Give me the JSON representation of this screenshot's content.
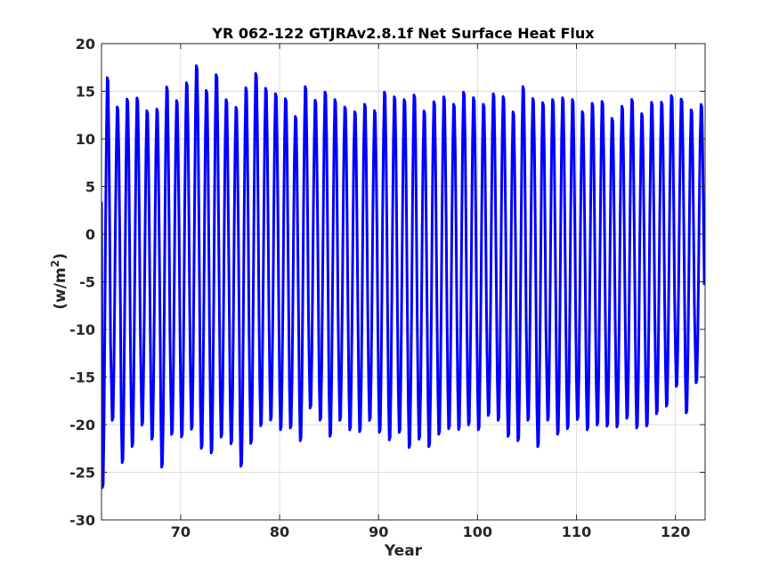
{
  "chart_data": {
    "type": "line",
    "title": "YR 062-122 GTJRAv2.8.1f Net Surface Heat Flux",
    "xlabel": "Year",
    "ylabel": "(w/m",
    "ylabel_sup": "2",
    "ylabel_close": ")",
    "xlim": [
      62,
      123
    ],
    "ylim": [
      -30,
      20
    ],
    "xticks": [
      70,
      80,
      90,
      100,
      110,
      120
    ],
    "yticks": [
      -30,
      -25,
      -20,
      -15,
      -10,
      -5,
      0,
      5,
      10,
      15,
      20
    ],
    "grid": true,
    "legend": "none",
    "series": [
      {
        "color": "#0000ff",
        "samples_per_year": 12,
        "x_start": 62.0,
        "annual_max": [
          17.0,
          13.8,
          14.7,
          14.8,
          13.4,
          13.6,
          16.0,
          14.5,
          16.4,
          18.2,
          15.6,
          17.3,
          14.6,
          13.8,
          15.9,
          17.4,
          15.8,
          15.2,
          14.7,
          12.8,
          16.0,
          14.5,
          15.4,
          14.6,
          13.8,
          13.3,
          14.1,
          13.4,
          15.4,
          14.9,
          14.6,
          15.1,
          13.4,
          14.4,
          14.9,
          14.1,
          15.4,
          14.8,
          14.1,
          15.2,
          14.9,
          13.3,
          16.0,
          14.7,
          14.3,
          14.6,
          14.8,
          14.6,
          13.3,
          14.2,
          14.4,
          12.6,
          13.9,
          14.6,
          13.1,
          14.3,
          14.3,
          15.0,
          14.6,
          13.5,
          14.0
        ],
        "annual_min": [
          -27.2,
          -20.0,
          -24.5,
          -22.8,
          -20.5,
          -22.0,
          -25.0,
          -21.5,
          -21.8,
          -21.0,
          -23.0,
          -23.5,
          -21.8,
          -22.5,
          -24.9,
          -22.5,
          -20.6,
          -20.0,
          -21.0,
          -20.8,
          -22.2,
          -18.7,
          -20.0,
          -21.7,
          -20.0,
          -21.0,
          -21.2,
          -20.0,
          -21.3,
          -22.1,
          -21.3,
          -22.9,
          -22.0,
          -22.8,
          -21.5,
          -20.9,
          -21.0,
          -20.5,
          -21.0,
          -19.5,
          -20.0,
          -21.7,
          -22.2,
          -20.0,
          -22.8,
          -20.0,
          -21.5,
          -20.9,
          -19.9,
          -21.0,
          -20.5,
          -20.6,
          -20.7,
          -19.8,
          -20.8,
          -20.6,
          -19.3,
          -18.5,
          -16.4,
          -19.2,
          -16.0
        ],
        "first_value": 3.4
      }
    ]
  }
}
